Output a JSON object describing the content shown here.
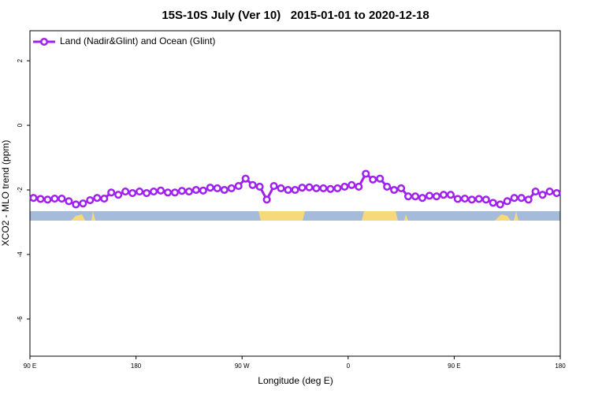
{
  "chart_data": {
    "type": "line",
    "title": "15S-10S July (Ver 10)   2015-01-01 to 2020-12-18",
    "x_label": "Longitude (deg E)",
    "y_label": "XCO2 - MLO trend (ppm)",
    "xlim": [
      90,
      540
    ],
    "ylim": [
      -7.15,
      2.93
    ],
    "xticks": [
      {
        "value": 90,
        "label": "90 E"
      },
      180,
      {
        "value": 270,
        "label": "90 W"
      },
      {
        "value": 360,
        "label": "0"
      },
      {
        "value": 450,
        "label": "90 E"
      },
      {
        "value": 540,
        "label": "180"
      }
    ],
    "yticks": [
      -6,
      -4,
      -2,
      0,
      2
    ],
    "grid": false,
    "legend": "top-left",
    "x": [
      93,
      99,
      105,
      111,
      117,
      123,
      129,
      135,
      141,
      147,
      153,
      159,
      165,
      171,
      177,
      183,
      189,
      195,
      201,
      207,
      213,
      219,
      225,
      231,
      237,
      243,
      249,
      255,
      261,
      267,
      273,
      279,
      285,
      291,
      297,
      303,
      309,
      315,
      321,
      327,
      333,
      339,
      345,
      351,
      357,
      363,
      369,
      375,
      381,
      387,
      393,
      399,
      405,
      411,
      417,
      423,
      429,
      435,
      441,
      447,
      453,
      459,
      465,
      471,
      477,
      483,
      489,
      495,
      501,
      507,
      513,
      519,
      525,
      531,
      537
    ],
    "series": [
      {
        "name": "Land (Nadir&Glint) and Ocean (Glint)",
        "color": "#a020f0",
        "values": [
          -2.25,
          -2.28,
          -2.3,
          -2.27,
          -2.27,
          -2.35,
          -2.45,
          -2.42,
          -2.32,
          -2.25,
          -2.27,
          -2.08,
          -2.15,
          -2.05,
          -2.1,
          -2.05,
          -2.1,
          -2.05,
          -2.02,
          -2.08,
          -2.08,
          -2.03,
          -2.05,
          -2.0,
          -2.02,
          -1.93,
          -1.95,
          -2.0,
          -1.95,
          -1.88,
          -1.65,
          -1.85,
          -1.9,
          -2.3,
          -1.88,
          -1.95,
          -2.0,
          -2.0,
          -1.93,
          -1.92,
          -1.95,
          -1.95,
          -1.97,
          -1.95,
          -1.9,
          -1.85,
          -1.9,
          -1.5,
          -1.68,
          -1.65,
          -1.9,
          -2.0,
          -1.95,
          -2.2,
          -2.2,
          -2.25,
          -2.18,
          -2.2,
          -2.15,
          -2.15,
          -2.28,
          -2.27,
          -2.3,
          -2.28,
          -2.3,
          -2.4,
          -2.45,
          -2.35,
          -2.25,
          -2.25,
          -2.3,
          -2.05,
          -2.15,
          -2.05,
          -2.1
        ]
      }
    ]
  }
}
